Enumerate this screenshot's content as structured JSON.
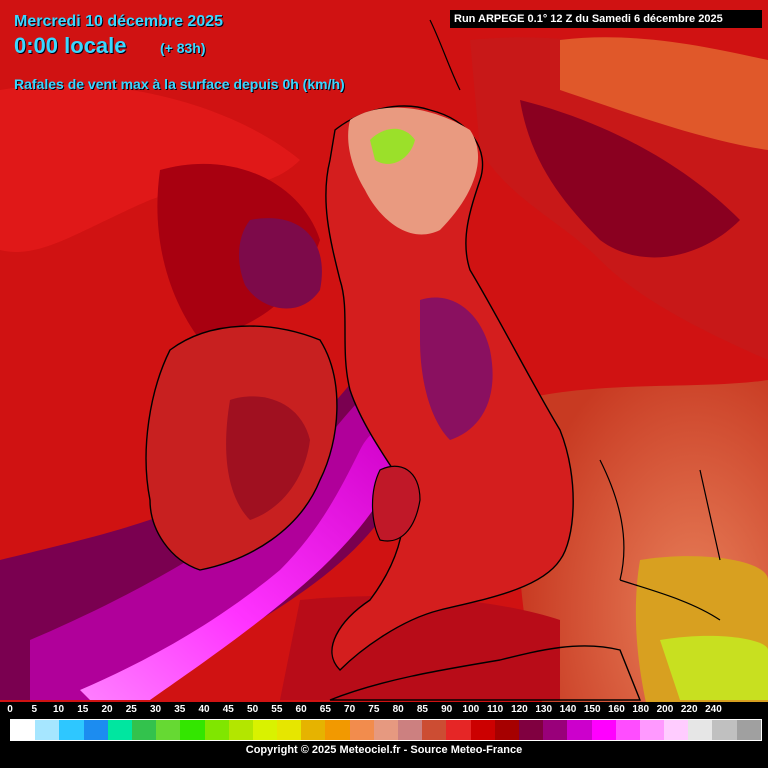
{
  "header": {
    "date": "Mercredi 10 décembre 2025",
    "time": "0:00 locale",
    "lead": "(+ 83h)",
    "variable": "Rafales de vent max à la surface depuis 0h (km/h)"
  },
  "run_info": "Run ARPEGE 0.1° 12 Z du Samedi 6 décembre 2025",
  "copyright": "Copyright © 2025 Meteociel.fr - Source Meteo-France",
  "legend": {
    "ticks": [
      "0",
      "5",
      "10",
      "15",
      "20",
      "25",
      "30",
      "35",
      "40",
      "45",
      "50",
      "55",
      "60",
      "65",
      "70",
      "75",
      "80",
      "85",
      "90",
      "100",
      "110",
      "120",
      "130",
      "140",
      "150",
      "160",
      "180",
      "200",
      "220",
      "240"
    ],
    "colors": [
      "#ffffff",
      "#a6e6ff",
      "#2ec7ff",
      "#1c8cf0",
      "#00e6a0",
      "#33c24d",
      "#66d933",
      "#33e600",
      "#80e600",
      "#b3e600",
      "#d9f200",
      "#e6e600",
      "#e6b300",
      "#f29900",
      "#f28c4d",
      "#e69980",
      "#cc8080",
      "#cc4d33",
      "#e62626",
      "#cc0000",
      "#a60000",
      "#800040",
      "#99007a",
      "#cc00cc",
      "#ff00ff",
      "#ff4dff",
      "#ff99ff",
      "#ffccff",
      "#e6e6e6",
      "#c0c0c0",
      "#a0a0a0"
    ]
  },
  "map": {
    "background": "#c81010",
    "sea_north": "#b30000",
    "land_main": "#d92020",
    "storm_core": "#ff2dff",
    "storm_mid": "#b5009a",
    "storm_outer": "#7d0047",
    "continent": "#e04a2a",
    "highland": "#f0a090"
  }
}
